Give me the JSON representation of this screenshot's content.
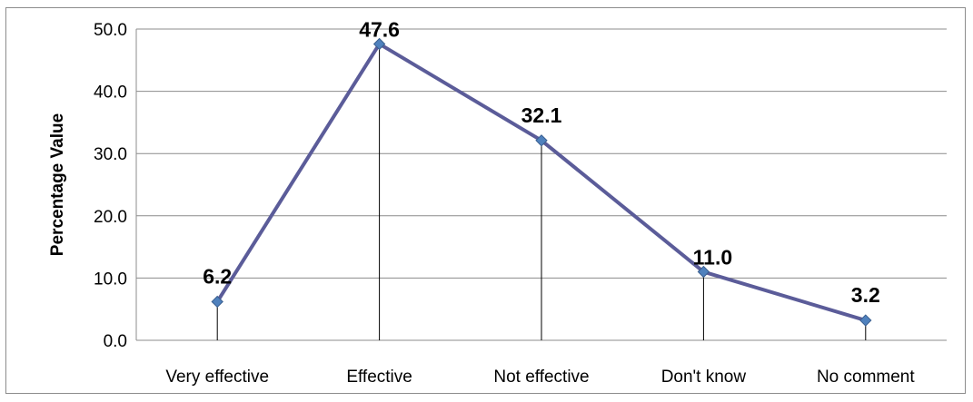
{
  "chart_data": {
    "type": "line",
    "categories": [
      "Very effective",
      "Effective",
      "Not effective",
      "Don't know",
      "No comment"
    ],
    "values": [
      6.2,
      47.6,
      32.1,
      11.0,
      3.2
    ],
    "data_labels": [
      "6.2",
      "47.6",
      "32.1",
      "11.0",
      "3.2"
    ],
    "title": "",
    "xlabel": "",
    "ylabel": "Percentage Value",
    "ylim": [
      0,
      50
    ],
    "yticks": [
      "0.0",
      "10.0",
      "20.0",
      "30.0",
      "40.0",
      "50.0"
    ],
    "grid": true,
    "drop_lines": true,
    "marker": "diamond",
    "colors": {
      "line": "#5b5c99",
      "marker": "#4f81bd",
      "marker_edge": "#3a5f8f",
      "grid": "#8c8c8c",
      "drop_line": "#000000"
    }
  }
}
